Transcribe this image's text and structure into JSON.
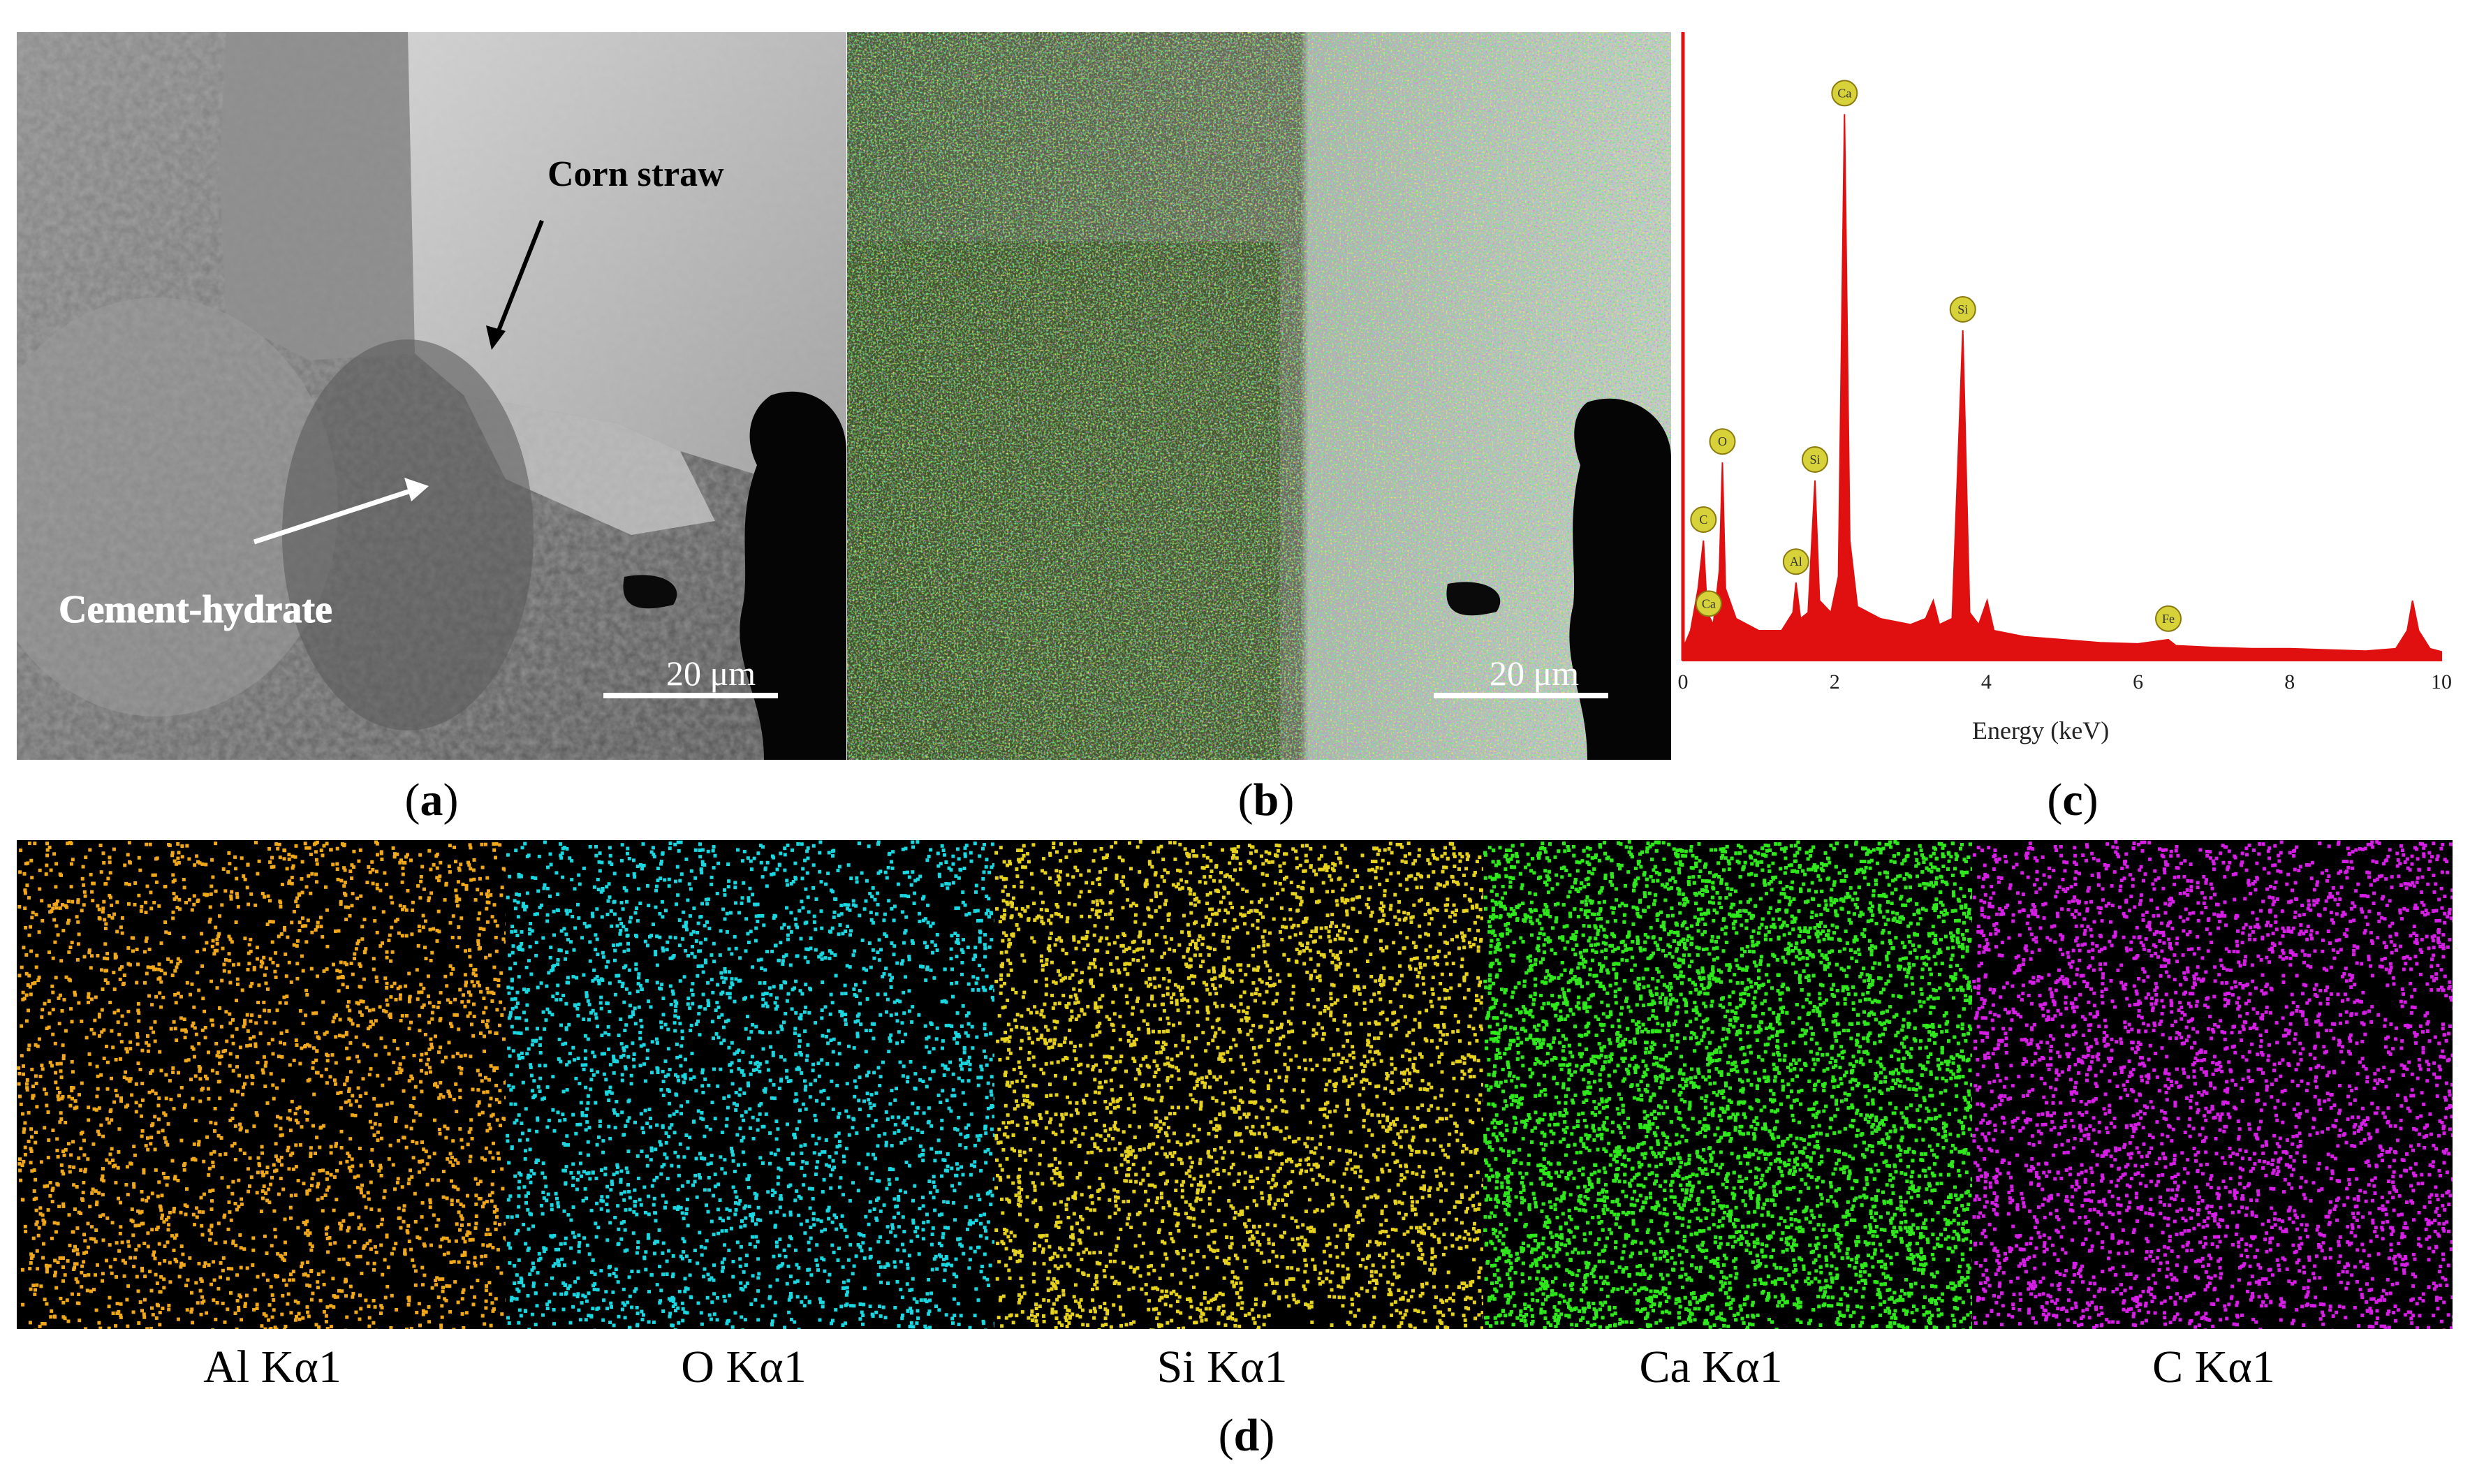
{
  "panels": {
    "a": {
      "label": "a",
      "annotations": {
        "corn_straw": "Corn straw",
        "cement_hydrate": "Cement-hydrate"
      },
      "scalebar": "20 μm"
    },
    "b": {
      "label": "b",
      "scalebar": "20 μm"
    },
    "c": {
      "label": "c"
    },
    "d": {
      "label": "d",
      "maps": [
        {
          "caption": "Al Kα1",
          "color": "#f0a81a"
        },
        {
          "caption": "O Kα1",
          "color": "#1ad6e0"
        },
        {
          "caption": "Si Kα1",
          "color": "#e6d21e"
        },
        {
          "caption": "Ca Kα1",
          "color": "#2ee81c"
        },
        {
          "caption": "C Kα1",
          "color": "#d61ee6"
        }
      ]
    }
  },
  "chart_data": {
    "type": "line",
    "xlabel": "Energy (keV)",
    "ylabel": "",
    "xlim": [
      0,
      10
    ],
    "x_ticks": [
      "0",
      "2",
      "4",
      "6",
      "8",
      "10"
    ],
    "series_color": "#e01010",
    "spectrum": [
      [
        0,
        0.02
      ],
      [
        0.1,
        0.05
      ],
      [
        0.2,
        0.12
      ],
      [
        0.27,
        0.2
      ],
      [
        0.32,
        0.08
      ],
      [
        0.4,
        0.06
      ],
      [
        0.48,
        0.15
      ],
      [
        0.52,
        0.33
      ],
      [
        0.56,
        0.12
      ],
      [
        0.7,
        0.07
      ],
      [
        1.0,
        0.05
      ],
      [
        1.3,
        0.05
      ],
      [
        1.45,
        0.08
      ],
      [
        1.49,
        0.13
      ],
      [
        1.55,
        0.07
      ],
      [
        1.65,
        0.08
      ],
      [
        1.74,
        0.3
      ],
      [
        1.8,
        0.1
      ],
      [
        1.95,
        0.08
      ],
      [
        2.05,
        0.14
      ],
      [
        2.13,
        0.91
      ],
      [
        2.2,
        0.2
      ],
      [
        2.3,
        0.09
      ],
      [
        2.6,
        0.07
      ],
      [
        3.0,
        0.06
      ],
      [
        3.2,
        0.07
      ],
      [
        3.3,
        0.1
      ],
      [
        3.38,
        0.06
      ],
      [
        3.55,
        0.07
      ],
      [
        3.69,
        0.55
      ],
      [
        3.78,
        0.08
      ],
      [
        3.9,
        0.06
      ],
      [
        4.01,
        0.1
      ],
      [
        4.1,
        0.05
      ],
      [
        4.5,
        0.04
      ],
      [
        5.0,
        0.035
      ],
      [
        5.5,
        0.03
      ],
      [
        6.0,
        0.028
      ],
      [
        6.4,
        0.035
      ],
      [
        6.5,
        0.025
      ],
      [
        7.0,
        0.022
      ],
      [
        7.5,
        0.02
      ],
      [
        8.0,
        0.02
      ],
      [
        8.5,
        0.018
      ],
      [
        9.0,
        0.016
      ],
      [
        9.4,
        0.02
      ],
      [
        9.55,
        0.05
      ],
      [
        9.62,
        0.1
      ],
      [
        9.7,
        0.05
      ],
      [
        9.85,
        0.02
      ],
      [
        10.0,
        0.015
      ]
    ],
    "peaks": [
      {
        "label": "C",
        "x": 0.27,
        "y": 0.2
      },
      {
        "label": "O",
        "x": 0.52,
        "y": 0.33
      },
      {
        "label": "Ca",
        "x": 0.34,
        "y": 0.06
      },
      {
        "label": "Al",
        "x": 1.49,
        "y": 0.13
      },
      {
        "label": "Si",
        "x": 1.74,
        "y": 0.3
      },
      {
        "label": "Ca",
        "x": 2.13,
        "y": 0.91
      },
      {
        "label": "Si",
        "x": 3.69,
        "y": 0.55
      },
      {
        "label": "Fe",
        "x": 6.4,
        "y": 0.035
      }
    ]
  }
}
